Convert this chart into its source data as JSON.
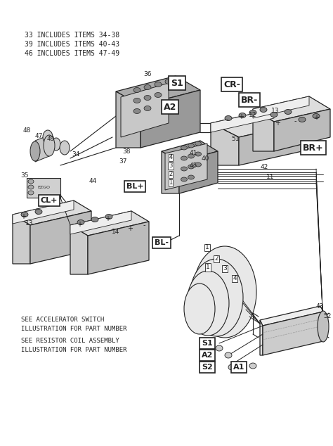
{
  "bg_color": "#ffffff",
  "lc": "#222222",
  "header_lines": [
    "33 INCLUDES ITEMS 34-38",
    "39 INCLUDES ITEMS 40-43",
    "46 INCLUDES ITEMS 47-49"
  ],
  "footer1": [
    "SEE ACCELERATOR SWITCH",
    "ILLUSTRATION FOR PART NUMBER"
  ],
  "footer2": [
    "SEE RESISTOR COIL ASSEMBLY",
    "ILLUSTRATION FOR PART NUMBER"
  ],
  "figsize": [
    4.74,
    6.34
  ],
  "dpi": 100
}
